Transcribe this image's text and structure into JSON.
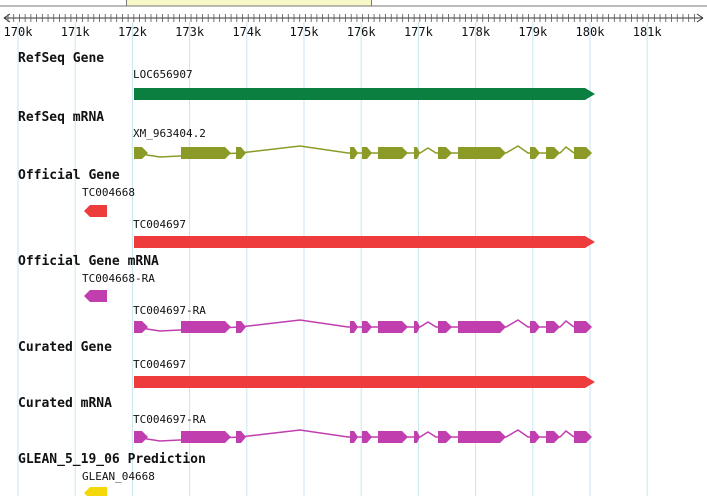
{
  "ruler": {
    "ticks": [
      "170k",
      "171k",
      "172k",
      "173k",
      "174k",
      "175k",
      "176k",
      "177k",
      "178k",
      "179k",
      "180k",
      "181k"
    ]
  },
  "tracks": [
    {
      "name": "RefSeq Gene",
      "features": [
        {
          "label": "LOC656907",
          "color": "#0a7f3f",
          "kind": "gene"
        }
      ]
    },
    {
      "name": "RefSeq mRNA",
      "features": [
        {
          "label": "XM_963404.2",
          "color": "#8c9a28",
          "kind": "mrna"
        }
      ]
    },
    {
      "name": "Official Gene",
      "features": [
        {
          "label": "TC004668",
          "color": "#ee3b3b",
          "kind": "small"
        },
        {
          "label": "TC004697",
          "color": "#ee3b3b",
          "kind": "gene"
        }
      ]
    },
    {
      "name": "Official Gene mRNA",
      "features": [
        {
          "label": "TC004668-RA",
          "color": "#c03eae",
          "kind": "small"
        },
        {
          "label": "TC004697-RA",
          "color": "#c03eae",
          "kind": "mrna"
        }
      ]
    },
    {
      "name": "Curated Gene",
      "features": [
        {
          "label": "TC004697",
          "color": "#ee3b3b",
          "kind": "gene"
        }
      ]
    },
    {
      "name": "Curated mRNA",
      "features": [
        {
          "label": "TC004697-RA",
          "color": "#c03eae",
          "kind": "mrna"
        }
      ]
    },
    {
      "name": "GLEAN_5_19_06 Prediction",
      "features": [
        {
          "label": "GLEAN_04668",
          "color": "#f5d80a",
          "kind": "small"
        }
      ]
    }
  ]
}
